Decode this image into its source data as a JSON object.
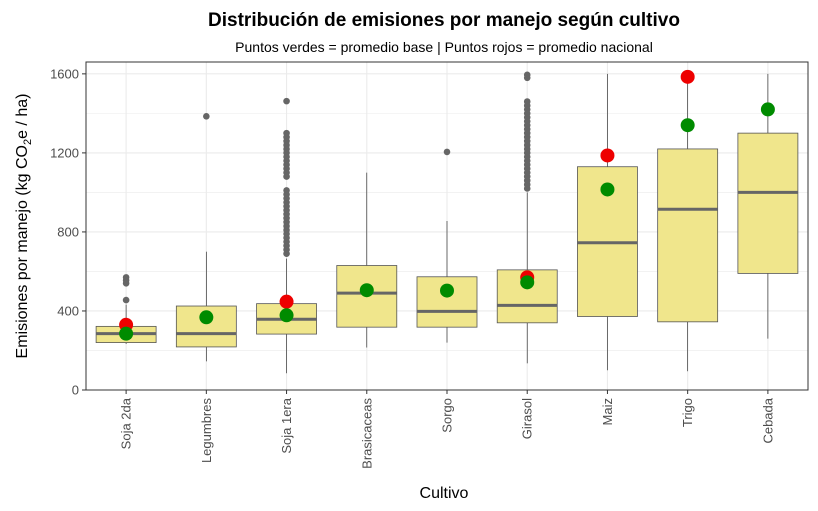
{
  "chart_data": {
    "type": "boxplot",
    "title": "Distribución de emisiones por manejo según cultivo",
    "subtitle": "Puntos verdes = promedio base | Puntos rojos = promedio nacional",
    "xlabel": "Cultivo",
    "ylabel": {
      "prefix": "Emisiones por manejo (kg CO",
      "subscript": "2",
      "suffix": "e / ha)"
    },
    "ylim": [
      0,
      1660
    ],
    "yticks": [
      0,
      400,
      800,
      1200,
      1600
    ],
    "grid": true,
    "colors": {
      "box_fill": "#f0e68c",
      "box_stroke": "#555555",
      "median": "#666666",
      "whisker": "#333333",
      "outlier": "#666666",
      "base_mean": "#008b00",
      "national_mean": "#ee0000",
      "grid": "#ebebeb"
    },
    "categories": [
      "Soja 2da",
      "Legumbres",
      "Soja 1era",
      "Brasicaceas",
      "Sorgo",
      "Girasol",
      "Maiz",
      "Trigo",
      "Cebada"
    ],
    "boxes": [
      {
        "category": "Soja 2da",
        "whisker_low": 233,
        "q1": 240,
        "median": 285,
        "q3": 322,
        "whisker_high": 432,
        "outliers": [
          455,
          540,
          555,
          570
        ]
      },
      {
        "category": "Legumbres",
        "whisker_low": 145,
        "q1": 218,
        "median": 285,
        "q3": 425,
        "whisker_high": 700,
        "outliers": [
          1385
        ]
      },
      {
        "category": "Soja 1era",
        "whisker_low": 85,
        "q1": 283,
        "median": 358,
        "q3": 437,
        "whisker_high": 665,
        "outliers": [
          690,
          710,
          730,
          750,
          770,
          790,
          810,
          830,
          850,
          870,
          890,
          910,
          930,
          950,
          970,
          990,
          1010,
          1080,
          1100,
          1120,
          1140,
          1160,
          1180,
          1200,
          1220,
          1240,
          1260,
          1280,
          1300,
          1462
        ]
      },
      {
        "category": "Brasicaceas",
        "whisker_low": 215,
        "q1": 318,
        "median": 490,
        "q3": 630,
        "whisker_high": 1100,
        "outliers": []
      },
      {
        "category": "Sorgo",
        "whisker_low": 240,
        "q1": 318,
        "median": 398,
        "q3": 573,
        "whisker_high": 855,
        "outliers": [
          1205
        ]
      },
      {
        "category": "Girasol",
        "whisker_low": 135,
        "q1": 340,
        "median": 428,
        "q3": 608,
        "whisker_high": 1000,
        "outliers": [
          1020,
          1040,
          1060,
          1080,
          1100,
          1120,
          1140,
          1160,
          1180,
          1200,
          1220,
          1240,
          1260,
          1280,
          1300,
          1320,
          1340,
          1360,
          1380,
          1400,
          1420,
          1440,
          1460,
          1580,
          1595
        ]
      },
      {
        "category": "Maiz",
        "whisker_low": 100,
        "q1": 372,
        "median": 745,
        "q3": 1130,
        "whisker_high": 1600,
        "outliers": []
      },
      {
        "category": "Trigo",
        "whisker_low": 95,
        "q1": 345,
        "median": 915,
        "q3": 1220,
        "whisker_high": 1600,
        "outliers": []
      },
      {
        "category": "Cebada",
        "whisker_low": 260,
        "q1": 590,
        "median": 1000,
        "q3": 1300,
        "whisker_high": 1600,
        "outliers": []
      }
    ],
    "base_mean": [
      285,
      368,
      378,
      505,
      503,
      545,
      1015,
      1340,
      1420
    ],
    "national_mean": [
      330,
      null,
      447,
      null,
      null,
      570,
      1187,
      1585,
      null
    ]
  }
}
